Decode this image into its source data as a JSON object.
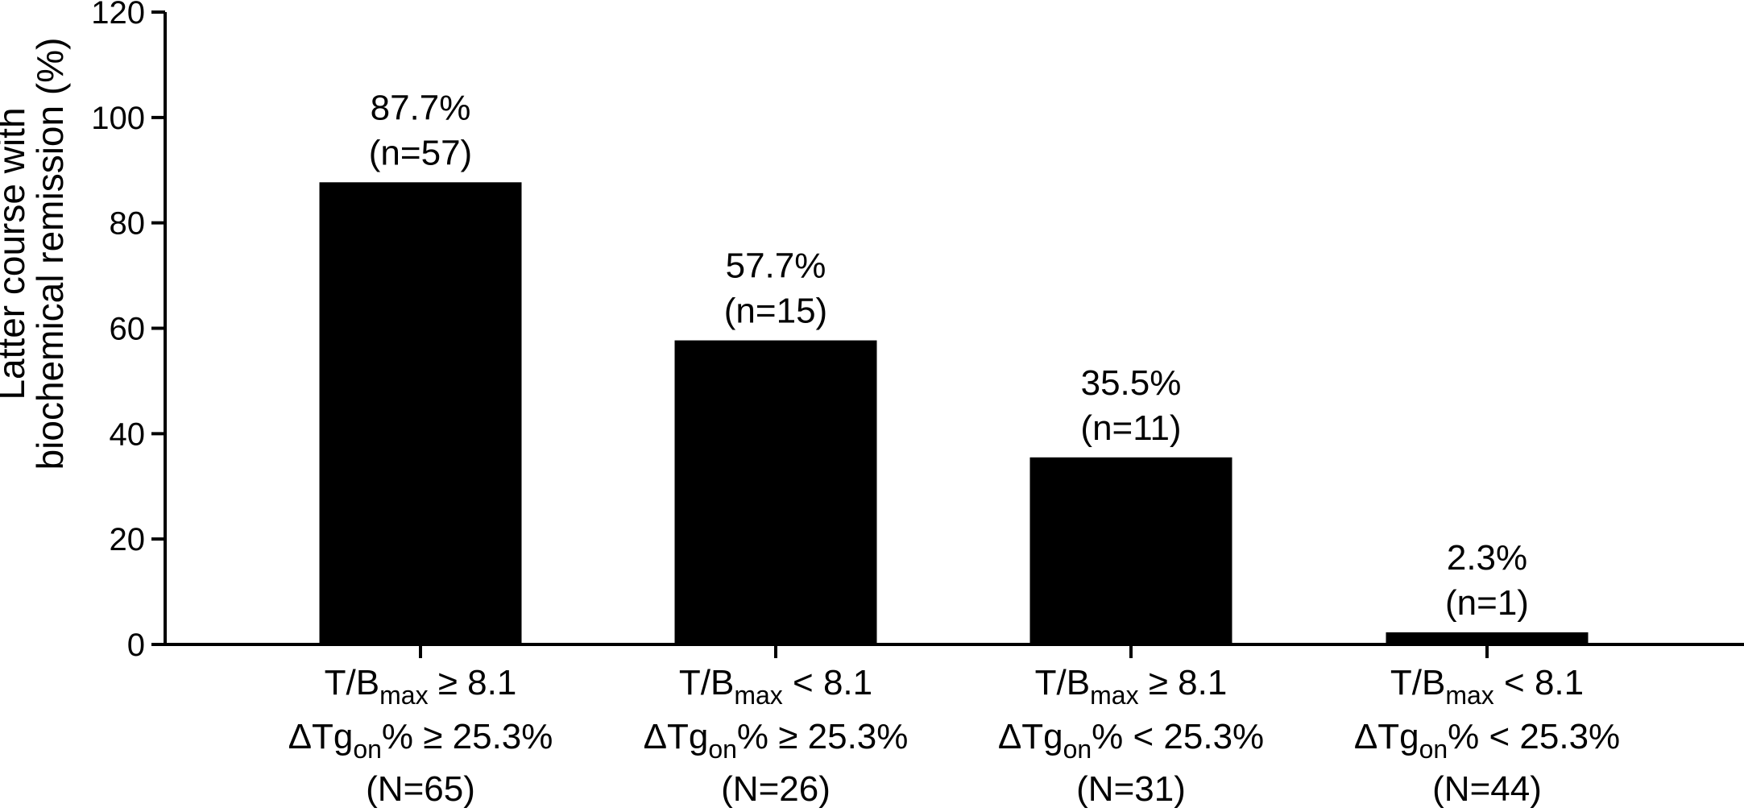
{
  "chart_data": {
    "type": "bar",
    "ylabel_lines": [
      "Latter course with",
      "biochemical remission (%)"
    ],
    "ylim": [
      0,
      120
    ],
    "yticks": [
      "0",
      "20",
      "40",
      "60",
      "80",
      "100",
      "120"
    ],
    "grid": false,
    "bar_color": "#000000",
    "categories": [
      {
        "line1_main": "T/B",
        "line1_sub": "max",
        "line1_rest": " ≥ 8.1",
        "line2_main": "ΔTg",
        "line2_sub": "on",
        "line2_rest": "% ≥ 25.3%",
        "line3": "(N=65)"
      },
      {
        "line1_main": "T/B",
        "line1_sub": "max",
        "line1_rest": " < 8.1",
        "line2_main": "ΔTg",
        "line2_sub": "on",
        "line2_rest": "% ≥ 25.3%",
        "line3": "(N=26)"
      },
      {
        "line1_main": "T/B",
        "line1_sub": "max",
        "line1_rest": " ≥ 8.1",
        "line2_main": "ΔTg",
        "line2_sub": "on",
        "line2_rest": "% < 25.3%",
        "line3": "(N=31)"
      },
      {
        "line1_main": "T/B",
        "line1_sub": "max",
        "line1_rest": " < 8.1",
        "line2_main": "ΔTg",
        "line2_sub": "on",
        "line2_rest": "% < 25.3%",
        "line3": "(N=44)"
      }
    ],
    "values": [
      87.7,
      57.7,
      35.5,
      2.3
    ],
    "value_labels": [
      "87.7%",
      "57.7%",
      "35.5%",
      "2.3%"
    ],
    "count_labels": [
      "(n=57)",
      "(n=15)",
      "(n=11)",
      "(n=1)"
    ]
  }
}
